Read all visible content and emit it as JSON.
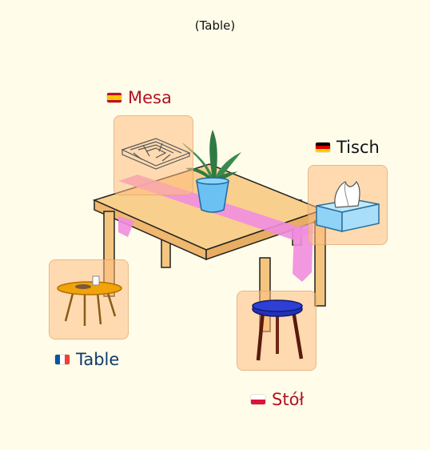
{
  "title": "(Table)",
  "labels": {
    "es": {
      "text": "Mesa",
      "color": "#b5121b"
    },
    "de": {
      "text": "Tisch",
      "color": "#111111"
    },
    "fr": {
      "text": "Table",
      "color": "#123a66"
    },
    "pl": {
      "text": "Stół",
      "color": "#b5121b"
    }
  },
  "colors": {
    "background": "#fffde9",
    "table_top": "#f8cf8d",
    "table_edge": "#f0b96e",
    "runner": "#f08de0",
    "pot": "#6bc1f2",
    "leaves": "#3a8a4e"
  },
  "icons": [
    "maze-icon",
    "tissue-box-icon",
    "cafe-table-icon",
    "stool-icon",
    "plant-pot-icon"
  ]
}
